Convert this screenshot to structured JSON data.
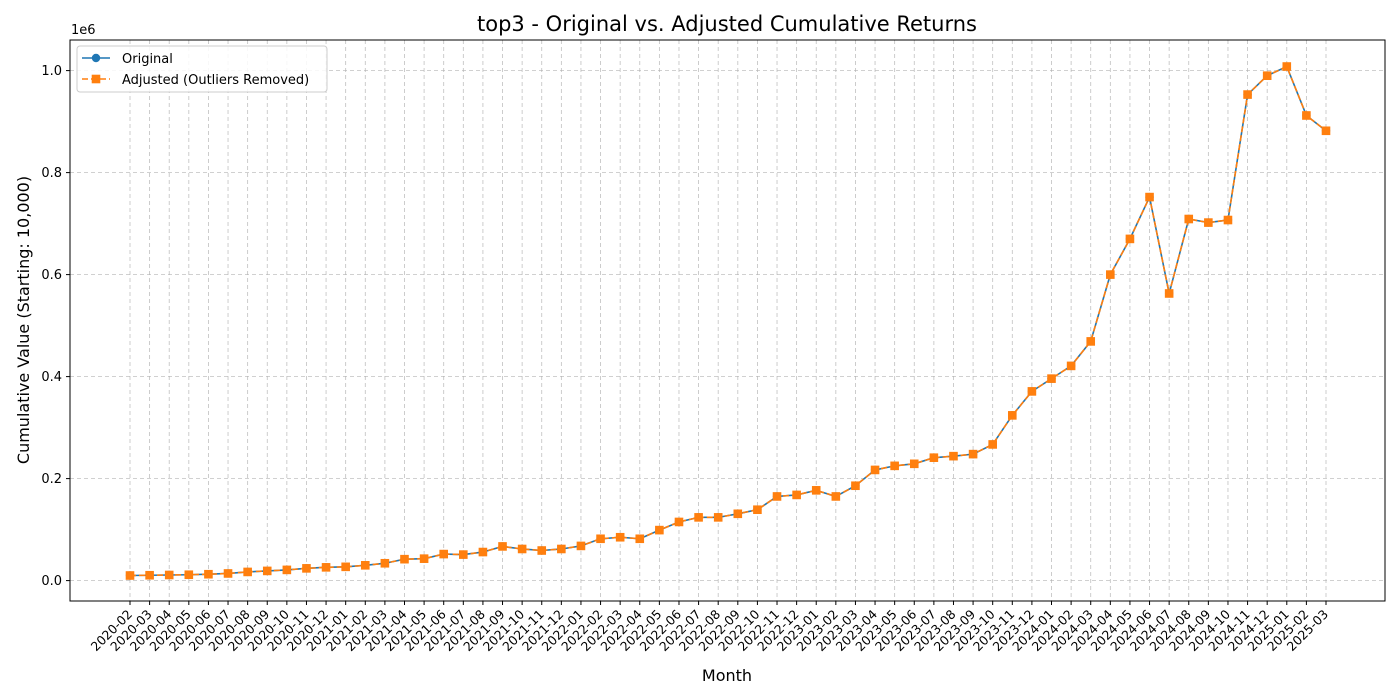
{
  "chart_data": {
    "type": "line",
    "title": "top3 - Original vs. Adjusted Cumulative Returns",
    "xlabel": "Month",
    "ylabel": "Cumulative Value (Starting: 10,000)",
    "y_scale_label": "1e6",
    "ylim": [
      -40000,
      1060000
    ],
    "yticks": [
      0,
      200000,
      400000,
      600000,
      800000,
      1000000
    ],
    "ytick_labels": [
      "0.0",
      "0.2",
      "0.4",
      "0.6",
      "0.8",
      "1.0"
    ],
    "grid": true,
    "legend_position": "upper-left",
    "categories": [
      "2020-02",
      "2020-03",
      "2020-04",
      "2020-05",
      "2020-06",
      "2020-07",
      "2020-08",
      "2020-09",
      "2020-10",
      "2020-11",
      "2020-12",
      "2021-01",
      "2021-02",
      "2021-03",
      "2021-04",
      "2021-05",
      "2021-06",
      "2021-07",
      "2021-08",
      "2021-09",
      "2021-10",
      "2021-11",
      "2021-12",
      "2022-01",
      "2022-02",
      "2022-03",
      "2022-04",
      "2022-05",
      "2022-06",
      "2022-07",
      "2022-08",
      "2022-09",
      "2022-10",
      "2022-11",
      "2022-12",
      "2023-01",
      "2023-02",
      "2023-03",
      "2023-04",
      "2023-05",
      "2023-06",
      "2023-07",
      "2023-08",
      "2023-09",
      "2023-10",
      "2023-11",
      "2023-12",
      "2024-01",
      "2024-02",
      "2024-03",
      "2024-04",
      "2024-05",
      "2024-06",
      "2024-07",
      "2024-08",
      "2024-09",
      "2024-10",
      "2024-11",
      "2024-12",
      "2025-01",
      "2025-02",
      "2025-03"
    ],
    "series": [
      {
        "name": "Original",
        "color": "#1f77b4",
        "marker": "circle",
        "line_style": "solid",
        "values": [
          10000,
          10500,
          11000,
          11500,
          12500,
          14000,
          17000,
          19000,
          21000,
          24000,
          26000,
          27000,
          30000,
          34000,
          42000,
          43000,
          52000,
          51000,
          56000,
          67000,
          62000,
          59000,
          62000,
          68000,
          82000,
          85000,
          82000,
          99000,
          115000,
          124000,
          124000,
          131000,
          139000,
          165000,
          168000,
          177000,
          165000,
          186000,
          217000,
          225000,
          229000,
          241000,
          244000,
          248000,
          267000,
          324000,
          371000,
          396000,
          421000,
          469000,
          600000,
          670000,
          752000,
          563000,
          709000,
          702000,
          707000,
          953000,
          990000,
          1008000,
          912000,
          882000
        ]
      },
      {
        "name": "Adjusted (Outliers Removed)",
        "color": "#ff7f0e",
        "marker": "square",
        "line_style": "dashed",
        "values": [
          10000,
          10500,
          11000,
          11500,
          12500,
          14000,
          17000,
          19000,
          21000,
          24000,
          26000,
          27000,
          30000,
          34000,
          42000,
          43000,
          52000,
          51000,
          56000,
          67000,
          62000,
          59000,
          62000,
          68000,
          82000,
          85000,
          82000,
          99000,
          115000,
          124000,
          124000,
          131000,
          139000,
          165000,
          168000,
          177000,
          165000,
          186000,
          217000,
          225000,
          229000,
          241000,
          244000,
          248000,
          267000,
          324000,
          371000,
          396000,
          421000,
          469000,
          600000,
          670000,
          752000,
          563000,
          709000,
          702000,
          707000,
          953000,
          990000,
          1008000,
          912000,
          882000
        ]
      }
    ]
  }
}
